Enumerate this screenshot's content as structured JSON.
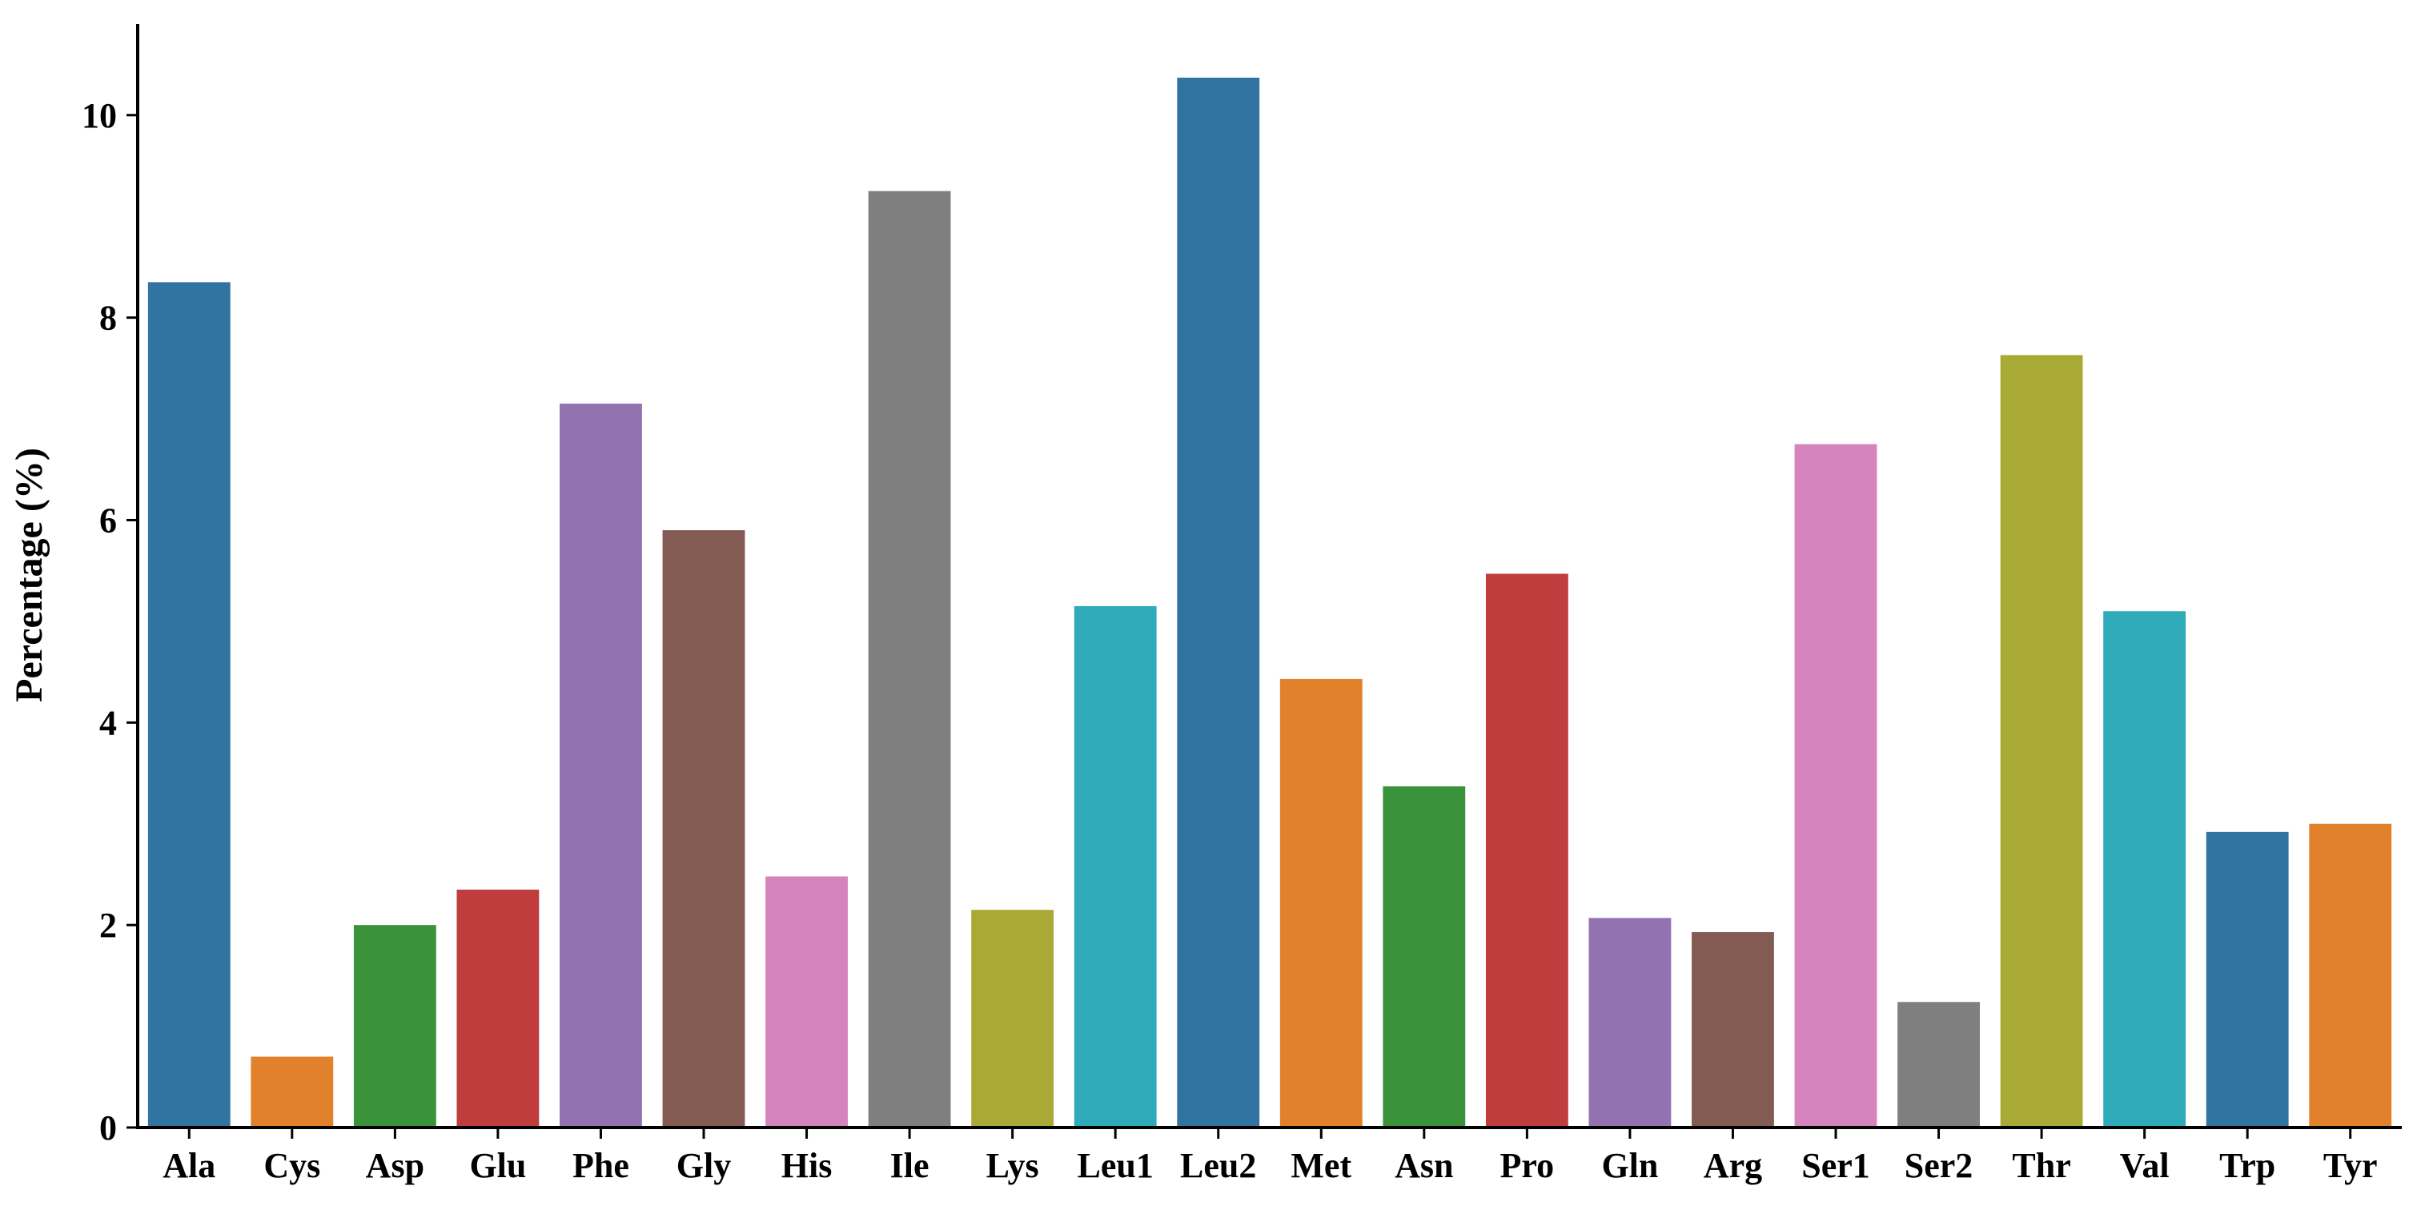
{
  "chart_data": {
    "type": "bar",
    "title": "",
    "xlabel": "",
    "ylabel": "Percentage (%)",
    "ylim": [
      0,
      10.9
    ],
    "yticks": [
      0,
      2,
      4,
      6,
      8,
      10
    ],
    "grid": false,
    "legend": "none",
    "categories": [
      "Ala",
      "Cys",
      "Asp",
      "Glu",
      "Phe",
      "Gly",
      "His",
      "Ile",
      "Lys",
      "Leu1",
      "Leu2",
      "Met",
      "Asn",
      "Pro",
      "Gln",
      "Arg",
      "Ser1",
      "Ser2",
      "Thr",
      "Val",
      "Trp",
      "Tyr"
    ],
    "values": [
      8.35,
      0.7,
      2.0,
      2.35,
      7.15,
      5.9,
      2.48,
      9.25,
      2.15,
      5.15,
      10.37,
      4.43,
      3.37,
      5.47,
      2.07,
      1.93,
      6.75,
      1.24,
      7.63,
      5.1,
      2.92,
      3.0
    ],
    "colors": [
      "#3274a1",
      "#e1812c",
      "#3a923a",
      "#c03d3e",
      "#9372b2",
      "#845b53",
      "#d684bd",
      "#7f7f7f",
      "#a9aa35",
      "#2eaab8",
      "#3274a1",
      "#e1812c",
      "#3a923a",
      "#c03d3e",
      "#9372b2",
      "#845b53",
      "#d684bd",
      "#7f7f7f",
      "#a9aa35",
      "#2eaab8",
      "#3274a1",
      "#e1812c"
    ]
  }
}
